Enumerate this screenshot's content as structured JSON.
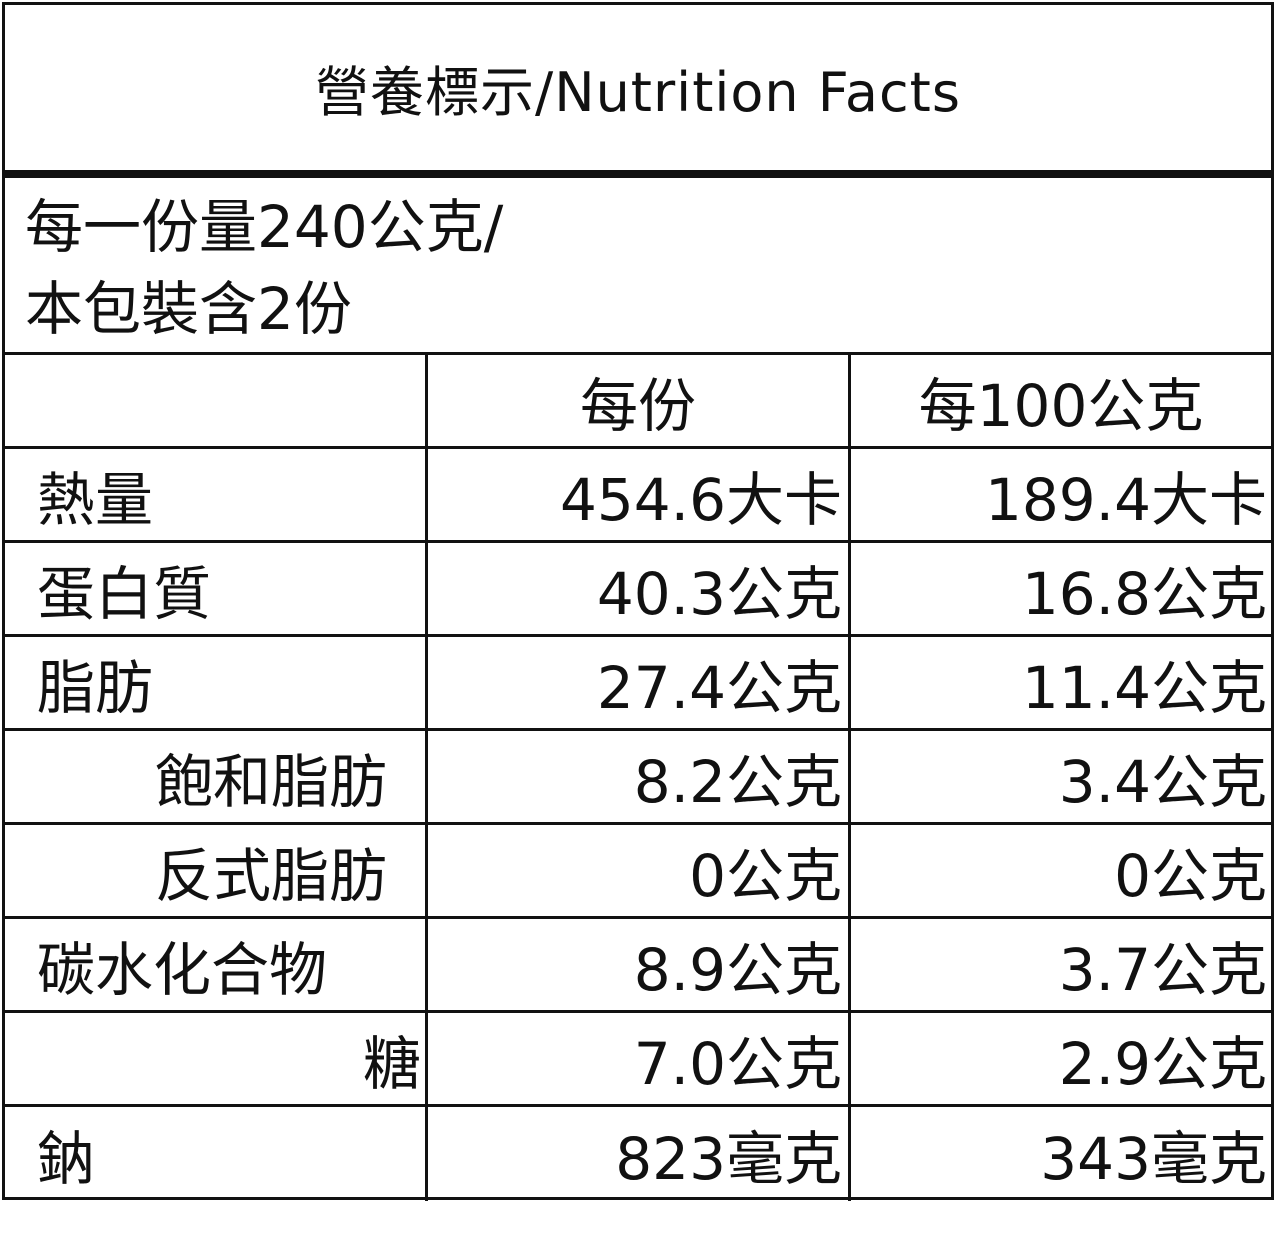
{
  "title": "營養標示/Nutrition Facts",
  "serving": {
    "line1": "每一份量240公克/",
    "line2": "本包裝含2份"
  },
  "columns": {
    "blank": "",
    "per_serving": "每份",
    "per_100g": "每100公克"
  },
  "rows": [
    {
      "name": "熱量",
      "per_serving": "454.6大卡",
      "per_100g": "189.4大卡"
    },
    {
      "name": "蛋白質",
      "per_serving": "40.3公克",
      "per_100g": "16.8公克"
    },
    {
      "name": "脂肪",
      "per_serving": "27.4公克",
      "per_100g": "11.4公克"
    },
    {
      "name": "飽和脂肪",
      "per_serving": "8.2公克",
      "per_100g": "3.4公克"
    },
    {
      "name": "反式脂肪",
      "per_serving": "0公克",
      "per_100g": "0公克"
    },
    {
      "name": "碳水化合物",
      "per_serving": "8.9公克",
      "per_100g": "3.7公克"
    },
    {
      "name": "糖",
      "per_serving": "7.0公克",
      "per_100g": "2.9公克"
    },
    {
      "name": "鈉",
      "per_serving": "823毫克",
      "per_100g": "343毫克"
    }
  ]
}
